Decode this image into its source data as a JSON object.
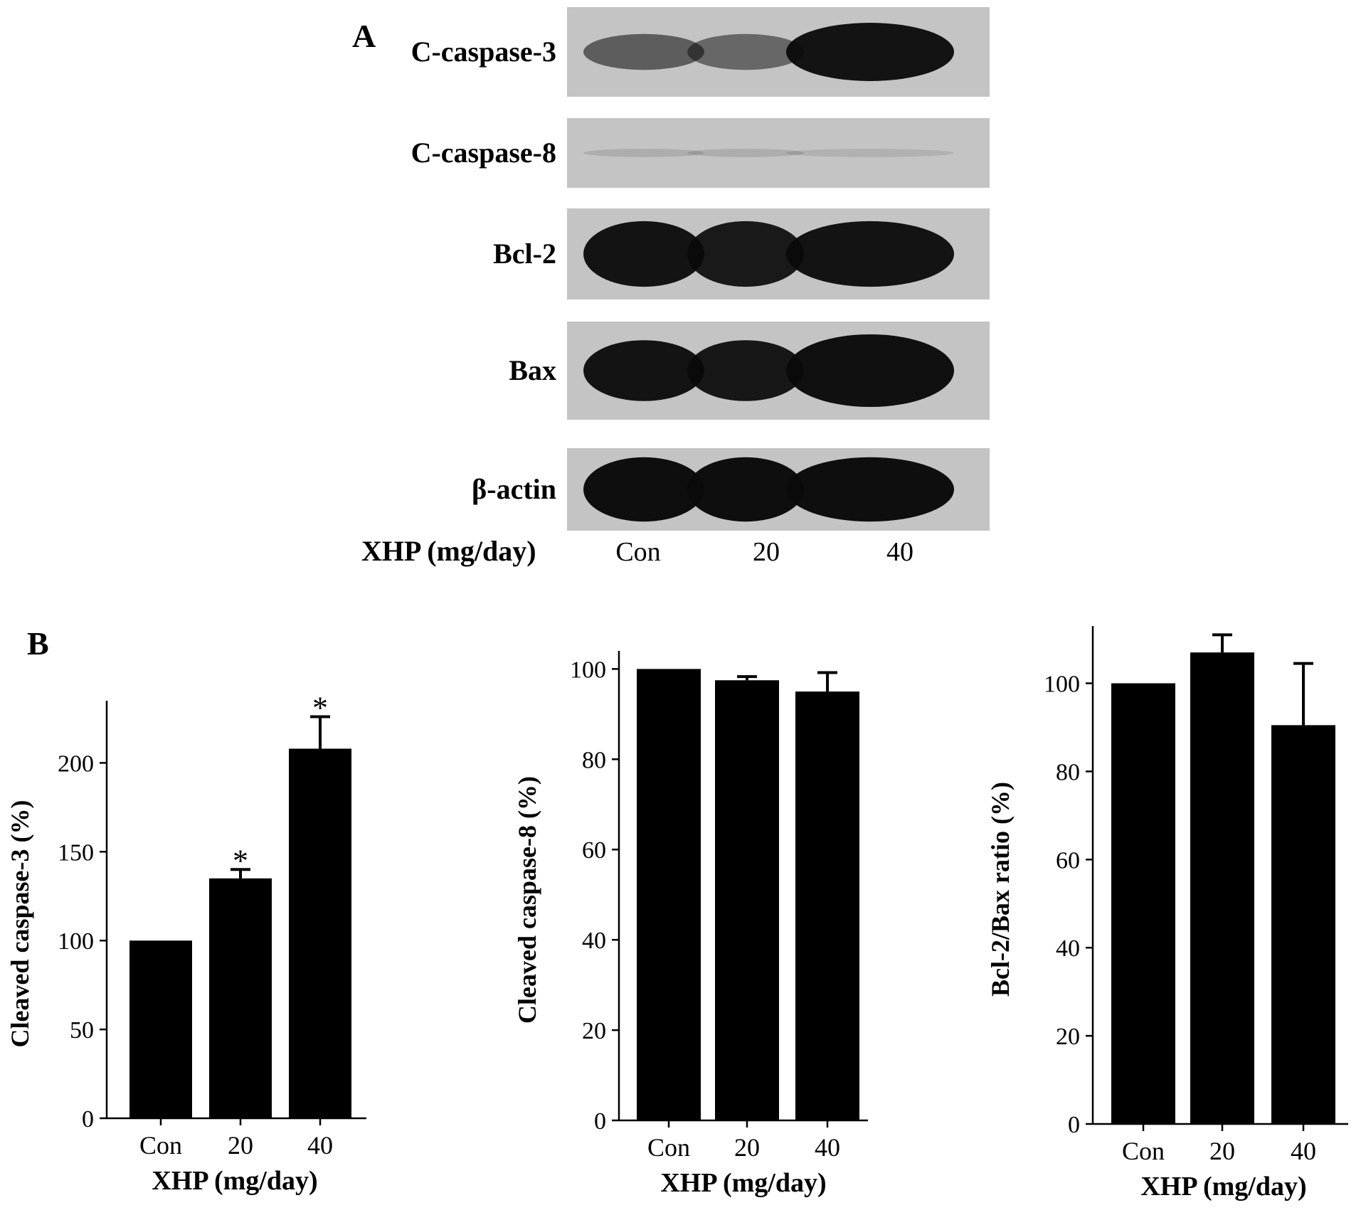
{
  "panel_a": {
    "label": "A",
    "blots": [
      {
        "label": "C-caspase-3",
        "intensity": [
          0.55,
          0.5,
          0.95
        ],
        "thickness": [
          0.4,
          0.4,
          0.65
        ]
      },
      {
        "label": "C-caspase-8",
        "intensity": [
          0.12,
          0.12,
          0.1
        ],
        "thickness": [
          0.12,
          0.12,
          0.12
        ]
      },
      {
        "label": "Bcl-2",
        "intensity": [
          0.95,
          0.92,
          0.95
        ],
        "thickness": [
          0.72,
          0.72,
          0.72
        ]
      },
      {
        "label": "Bax",
        "intensity": [
          0.95,
          0.93,
          0.97
        ],
        "thickness": [
          0.62,
          0.62,
          0.74
        ]
      },
      {
        "label": "β-actin",
        "intensity": [
          0.98,
          0.98,
          0.98
        ],
        "thickness": [
          0.78,
          0.78,
          0.78
        ]
      }
    ],
    "xaxis_label": "XHP (mg/day)",
    "lanes": [
      "Con",
      "20",
      "40"
    ]
  },
  "panel_b": {
    "label": "B"
  },
  "colors": {
    "bar": "#000000",
    "blot_bg": "#c4c4c4",
    "band": "#0a0a0a",
    "axis": "#000000"
  },
  "chart_data": [
    {
      "type": "bar",
      "categories": [
        "Con",
        "20",
        "40"
      ],
      "values": [
        100,
        135,
        208
      ],
      "errors": [
        0,
        5,
        18
      ],
      "significance": [
        "",
        "*",
        "*"
      ],
      "xlabel": "XHP (mg/day)",
      "ylabel": "Cleaved caspase-3 (%)",
      "ylim": [
        0,
        235
      ],
      "yticks": [
        0,
        50,
        100,
        150,
        200
      ],
      "ytick_labels": [
        "0",
        "50",
        "100",
        "150",
        "200"
      ]
    },
    {
      "type": "bar",
      "categories": [
        "Con",
        "20",
        "40"
      ],
      "values": [
        100,
        97.5,
        95
      ],
      "errors": [
        0,
        0.8,
        4.2
      ],
      "significance": [
        "",
        "",
        ""
      ],
      "xlabel": "XHP (mg/day)",
      "ylabel": "Cleaved caspase-8 (%)",
      "ylim": [
        0,
        104
      ],
      "yticks": [
        0,
        20,
        40,
        60,
        80,
        100
      ],
      "ytick_labels": [
        "0",
        "20",
        "40",
        "60",
        "80",
        "100"
      ]
    },
    {
      "type": "bar",
      "categories": [
        "Con",
        "20",
        "40"
      ],
      "values": [
        100,
        107,
        90.5
      ],
      "errors": [
        0,
        4,
        14
      ],
      "significance": [
        "",
        "",
        ""
      ],
      "xlabel": "XHP (mg/day)",
      "ylabel": "Bcl-2/Bax ratio (%)",
      "ylim": [
        0,
        113
      ],
      "yticks": [
        0,
        20,
        40,
        60,
        80,
        100
      ],
      "ytick_labels": [
        "0",
        "20",
        "40",
        "60",
        "80",
        "100"
      ]
    }
  ]
}
